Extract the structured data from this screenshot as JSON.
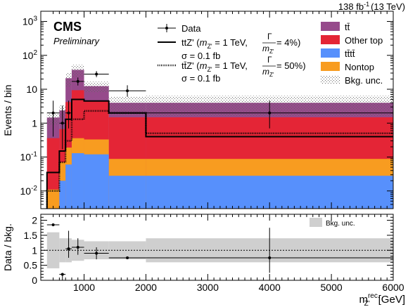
{
  "chart_data": {
    "type": "bar",
    "header": {
      "cms": "CMS",
      "preliminary": "Preliminary",
      "lumi_value": "138 fb",
      "lumi_exp": "-1",
      "lumi_energy": "(13 TeV)"
    },
    "xlabel": {
      "main": "m",
      "sup": "rec.",
      "sub": "Z'",
      "unit": "[GeV]"
    },
    "ylabel_top": "Events / bin",
    "ylabel_bottom": "Data / bkg.",
    "x_edges": [
      400,
      600,
      700,
      800,
      1000,
      1400,
      2000,
      6000
    ],
    "xlim": [
      300,
      6000
    ],
    "x_ticks": [
      1000,
      2000,
      3000,
      4000,
      5000,
      6000
    ],
    "x_tick_labels": [
      "1000",
      "2000",
      "3000",
      "4000",
      "5000",
      "6000"
    ],
    "top_panel": {
      "ylim": [
        0.003,
        2000
      ],
      "yscale": "log",
      "y_ticks": [
        0.01,
        0.1,
        1,
        10,
        100,
        1000
      ],
      "y_tick_labels": [
        {
          "base": "10",
          "exp": "-2"
        },
        {
          "base": "10",
          "exp": "-1"
        },
        {
          "base": "1",
          "exp": ""
        },
        {
          "base": "10",
          "exp": ""
        },
        {
          "base": "10",
          "exp": "2"
        },
        {
          "base": "10",
          "exp": "3"
        }
      ],
      "backgrounds": [
        {
          "name": "tttt",
          "color": "#5790fc",
          "values": [
            0.003,
            0.02,
            0.06,
            0.13,
            0.12,
            0.028,
            0.028
          ]
        },
        {
          "name": "Nontop",
          "color": "#f89c20",
          "values": [
            0.008,
            0.05,
            0.13,
            0.23,
            0.21,
            0.06,
            0.06
          ]
        },
        {
          "name": "Other top",
          "color": "#e42536",
          "values": [
            0.35,
            0.6,
            4.0,
            9.0,
            4.0,
            1.4,
            1.4
          ]
        },
        {
          "name": "tt",
          "color": "#964a8b",
          "values": [
            1.1,
            1.7,
            17.0,
            28.0,
            8.0,
            2.5,
            2.5
          ]
        }
      ],
      "unc_rel": [
        0.4,
        0.4,
        0.45,
        0.4,
        0.35,
        0.55,
        0.6
      ],
      "data": {
        "x": [
          500,
          650,
          750,
          900,
          1200,
          1700,
          4000
        ],
        "y": [
          2.0,
          1.0,
          2.0,
          17.0,
          28.0,
          9.0,
          2.0
        ],
        "yerr_low": [
          1.6,
          0.83,
          1.3,
          4.1,
          5.3,
          3.0,
          1.3
        ],
        "yerr_high": [
          2.6,
          2.3,
          2.6,
          5.2,
          6.3,
          4.1,
          2.6
        ]
      },
      "signals": [
        {
          "name": "tt̄Z' 4%",
          "style": "solid",
          "values": [
            0.035,
            0.15,
            1.3,
            5.0,
            4.5,
            2.0,
            0.4
          ]
        },
        {
          "name": "tt̄Z' 50%",
          "style": "dotted",
          "values": [
            0.01,
            0.07,
            0.3,
            1.3,
            2.3,
            2.0,
            0.5
          ]
        }
      ]
    },
    "ratio_panel": {
      "ylim": [
        0,
        2.2
      ],
      "y_ticks": [
        0,
        0.5,
        1,
        1.5,
        2
      ],
      "y_tick_labels": [
        "0",
        "0.5",
        "1",
        "1.5",
        "2"
      ],
      "unc_low": [
        0.4,
        0.6,
        0.6,
        0.65,
        0.7,
        0.7,
        0.6
      ],
      "unc_high": [
        1.6,
        1.4,
        1.4,
        1.35,
        1.3,
        1.3,
        1.4
      ],
      "data": {
        "x": [
          500,
          650,
          750,
          900,
          1200,
          1700,
          4000
        ],
        "y": [
          1.85,
          0.2,
          1.05,
          1.1,
          0.9,
          0.75,
          0.75
        ],
        "yerr_low": [
          0,
          0.2,
          0.3,
          0.25,
          0.2,
          0,
          0.5
        ],
        "yerr_high": [
          0,
          0,
          0.6,
          0.3,
          0.2,
          0,
          1.0
        ]
      },
      "legend_label": "Bkg. unc."
    },
    "legend_left": {
      "data_label": "Data",
      "sig1": {
        "prefix": "ttZ' (",
        "m": "m",
        "msub": "Z'",
        "eq": " = 1 TeV, ",
        "frac_num": "Γ",
        "frac_den": "m",
        "frac_den_sub": "Z'",
        "suffix": " = 4%)"
      },
      "sig1_xsec": "σ = 0.1 fb",
      "sig2": {
        "prefix": "tt̄Z' (",
        "m": "m",
        "msub": "Z'",
        "eq": " = 1 TeV, ",
        "frac_num": "Γ",
        "frac_den": "m",
        "frac_den_sub": "Z'",
        "suffix": " = 50%)"
      },
      "sig2_xsec": "σ = 0.1 fb"
    },
    "legend_right": [
      {
        "label": "tt̄",
        "color": "#964a8b"
      },
      {
        "label": "Other top",
        "color": "#e42536"
      },
      {
        "label": "tt̄tt̄",
        "color": "#5790fc"
      },
      {
        "label": "Nontop",
        "color": "#f89c20"
      },
      {
        "label": "Bkg. unc.",
        "color": "hatch"
      }
    ]
  }
}
